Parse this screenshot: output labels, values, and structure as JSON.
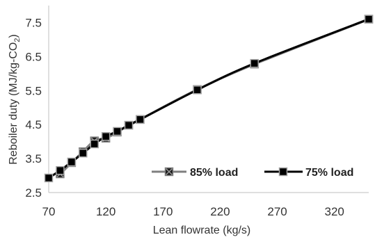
{
  "chart_data": {
    "type": "line",
    "xlabel": "Lean flowrate (kg/s)",
    "ylabel_main": "Reboiler duty (MJ/kg-CO",
    "ylabel_sub": "2",
    "ylabel_tail": ")",
    "xlim": [
      70,
      350
    ],
    "ylim": [
      2.5,
      8.0
    ],
    "x_ticks": [
      70,
      120,
      170,
      220,
      270,
      320
    ],
    "x_tick_labels": [
      "70",
      "120",
      "170",
      "220",
      "270",
      "320"
    ],
    "y_ticks": [
      2.5,
      3.5,
      4.5,
      5.5,
      6.5,
      7.5
    ],
    "y_tick_labels": [
      "2.5",
      "3.5",
      "4.5",
      "5.5",
      "6.5",
      "7.5"
    ],
    "legend_position": "bottom-right",
    "series": [
      {
        "name": "85% load",
        "color": "#7f7f7f",
        "marker": "box-x",
        "x": [
          80,
          90,
          100,
          110,
          120,
          130,
          140,
          150,
          200,
          250,
          350
        ],
        "y": [
          3.05,
          3.38,
          3.7,
          4.02,
          4.1,
          4.28,
          4.48,
          4.65,
          5.53,
          6.28,
          7.6
        ]
      },
      {
        "name": "75% load",
        "color": "#000000",
        "marker": "square",
        "x": [
          70,
          80,
          90,
          100,
          110,
          120,
          130,
          140,
          150,
          200,
          250,
          350
        ],
        "y": [
          2.93,
          3.15,
          3.4,
          3.66,
          3.93,
          4.15,
          4.3,
          4.48,
          4.65,
          5.52,
          6.3,
          7.6
        ]
      }
    ]
  }
}
